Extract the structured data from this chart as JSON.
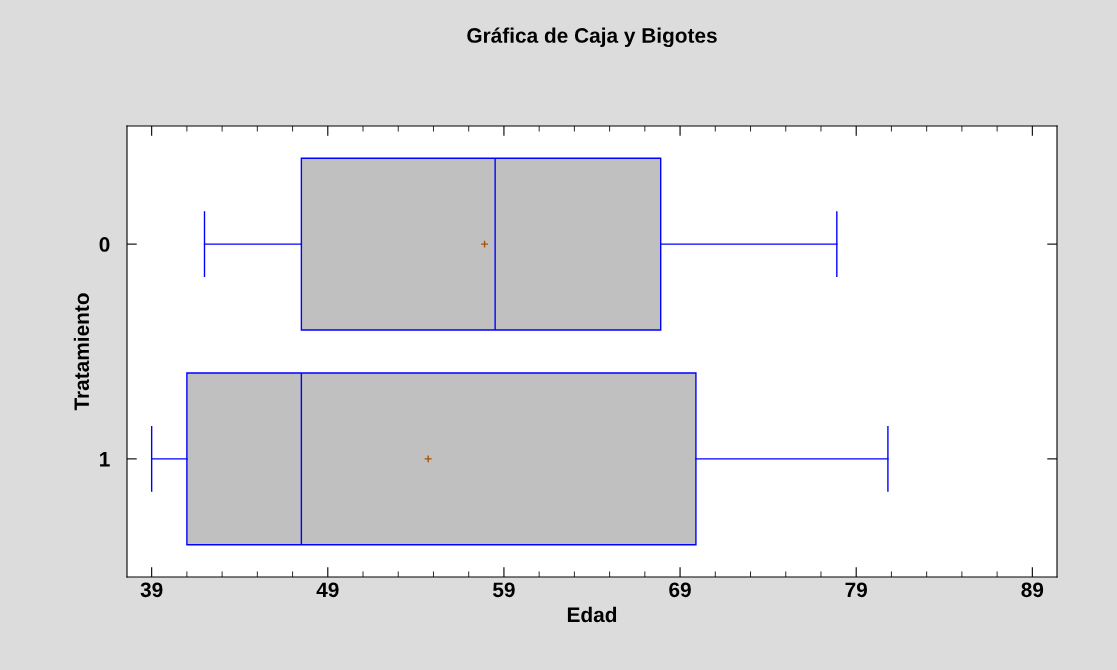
{
  "chart_data": {
    "type": "box",
    "orientation": "horizontal",
    "title": "Gráfica de Caja y Bigotes",
    "xlabel": "Edad",
    "ylabel": "Tratamiento",
    "categories": [
      "0",
      "1"
    ],
    "boxes": [
      {
        "low": 42.0,
        "q1": 47.5,
        "median": 58.5,
        "q3": 67.9,
        "high": 77.9,
        "mean": 57.9
      },
      {
        "low": 39.0,
        "q1": 41.0,
        "median": 47.5,
        "q3": 69.9,
        "high": 80.8,
        "mean": 54.7
      }
    ],
    "color": "#c0c0c0",
    "xlim": [
      37.6,
      90.4
    ],
    "xticks": [
      39,
      {
        "value": 41,
        "label": null
      },
      {
        "value": 43,
        "label": null
      },
      {
        "value": 45,
        "label": null
      },
      {
        "value": 47,
        "label": null
      },
      49,
      {
        "value": 51,
        "label": null
      },
      {
        "value": 53,
        "label": null
      },
      {
        "value": 55,
        "label": null
      },
      {
        "value": 57,
        "label": null
      },
      59,
      {
        "value": 61,
        "label": null
      },
      {
        "value": 63,
        "label": null
      },
      {
        "value": 65,
        "label": null
      },
      {
        "value": 67,
        "label": null
      },
      69,
      {
        "value": 71,
        "label": null
      },
      {
        "value": 73,
        "label": null
      },
      {
        "value": 75,
        "label": null
      },
      {
        "value": 77,
        "label": null
      },
      79,
      {
        "value": 81,
        "label": null
      },
      {
        "value": 83,
        "label": null
      },
      {
        "value": 85,
        "label": null
      },
      {
        "value": 87,
        "label": null
      },
      89
    ],
    "grid": false
  }
}
